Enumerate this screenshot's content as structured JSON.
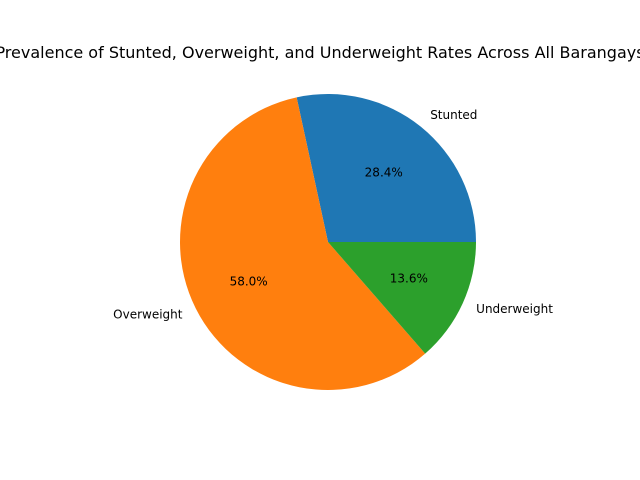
{
  "chart_data": {
    "type": "pie",
    "title": "Prevalence of Stunted, Overweight, and Underweight Rates Across All Barangays",
    "categories": [
      "Stunted",
      "Overweight",
      "Underweight"
    ],
    "values": [
      28.4,
      58.0,
      13.6
    ],
    "percent_labels": [
      "28.4%",
      "58.0%",
      "13.6%"
    ],
    "colors": [
      "#1f77b4",
      "#ff7f0e",
      "#2ca02c"
    ],
    "start_angle_deg": 0,
    "direction": "counterclockwise",
    "legend": "none"
  }
}
